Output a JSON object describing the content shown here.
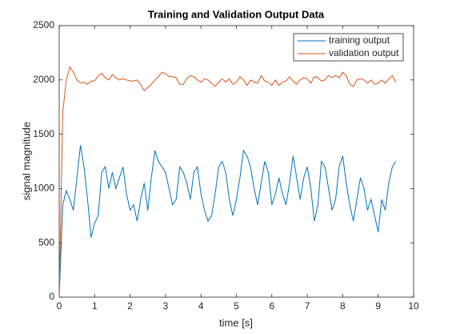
{
  "chart_data": {
    "type": "line",
    "title": "Training and Validation Output Data",
    "x_label": "time [s]",
    "y_label": "signal magnitude",
    "x": [
      0,
      0.1,
      0.2,
      0.3,
      0.4,
      0.5,
      0.6,
      0.7,
      0.8,
      0.9,
      1,
      1.1,
      1.2,
      1.3,
      1.4,
      1.5,
      1.6,
      1.7,
      1.8,
      1.9,
      2,
      2.1,
      2.2,
      2.3,
      2.4,
      2.5,
      2.6,
      2.7,
      2.8,
      2.9,
      3,
      3.1,
      3.2,
      3.3,
      3.4,
      3.5,
      3.6,
      3.7,
      3.8,
      3.9,
      4,
      4.1,
      4.2,
      4.3,
      4.4,
      4.5,
      4.6,
      4.7,
      4.8,
      4.9,
      5,
      5.1,
      5.2,
      5.3,
      5.4,
      5.5,
      5.6,
      5.7,
      5.8,
      5.9,
      6,
      6.1,
      6.2,
      6.3,
      6.4,
      6.5,
      6.6,
      6.7,
      6.8,
      6.9,
      7,
      7.1,
      7.2,
      7.3,
      7.4,
      7.5,
      7.6,
      7.7,
      7.8,
      7.9,
      8,
      8.1,
      8.2,
      8.3,
      8.4,
      8.5,
      8.6,
      8.7,
      8.8,
      8.9,
      9,
      9.1,
      9.2,
      9.3,
      9.4,
      9.5
    ],
    "series": [
      {
        "name": "training output",
        "color": "#0072bd",
        "values": [
          0,
          850,
          980,
          900,
          800,
          1100,
          1400,
          1200,
          900,
          550,
          680,
          750,
          1150,
          1200,
          1000,
          1150,
          1000,
          1100,
          1200,
          950,
          800,
          850,
          700,
          900,
          1050,
          800,
          1100,
          1350,
          1250,
          1200,
          1150,
          1000,
          850,
          900,
          1200,
          1150,
          1050,
          900,
          1150,
          1200,
          950,
          800,
          700,
          750,
          950,
          1200,
          1250,
          1150,
          900,
          750,
          900,
          1100,
          1350,
          1300,
          1200,
          1000,
          850,
          1050,
          1250,
          1150,
          850,
          950,
          1100,
          950,
          850,
          1050,
          1300,
          1100,
          900,
          1100,
          1200,
          1000,
          700,
          850,
          1250,
          1200,
          1000,
          800,
          900,
          1200,
          1300,
          1050,
          850,
          700,
          900,
          1100,
          1000,
          800,
          900,
          750,
          600,
          900,
          800,
          1050,
          1200,
          1250
        ]
      },
      {
        "name": "validation output",
        "color": "#d95319",
        "values": [
          0,
          1700,
          2000,
          2120,
          2070,
          2000,
          1970,
          1980,
          1960,
          1990,
          1990,
          2040,
          2060,
          2020,
          2000,
          2050,
          2020,
          2000,
          2010,
          2000,
          1990,
          1990,
          2000,
          1960,
          1900,
          1930,
          1960,
          2000,
          2030,
          2070,
          2060,
          2030,
          2030,
          2020,
          1960,
          1960,
          2010,
          2040,
          2030,
          2000,
          1980,
          2010,
          2000,
          1970,
          1940,
          1980,
          2010,
          1980,
          2010,
          1960,
          1980,
          2030,
          2000,
          1950,
          2000,
          1980,
          1970,
          2040,
          1990,
          1980,
          1950,
          2000,
          1950,
          1980,
          1990,
          2030,
          1990,
          1960,
          2000,
          2020,
          2010,
          1970,
          2030,
          2020,
          1990,
          2000,
          2040,
          2020,
          2040,
          2020,
          2070,
          2040,
          1960,
          1940,
          2000,
          2010,
          2000,
          1970,
          2000,
          1960,
          1970,
          2000,
          1970,
          2010,
          2040,
          1980
        ]
      }
    ],
    "xlim": [
      0,
      10
    ],
    "xticks": [
      0,
      1,
      2,
      3,
      4,
      5,
      6,
      7,
      8,
      9,
      10
    ],
    "ylim": [
      0,
      2500
    ],
    "yticks": [
      0,
      500,
      1000,
      1500,
      2000,
      2500
    ],
    "legend": "upper right"
  }
}
